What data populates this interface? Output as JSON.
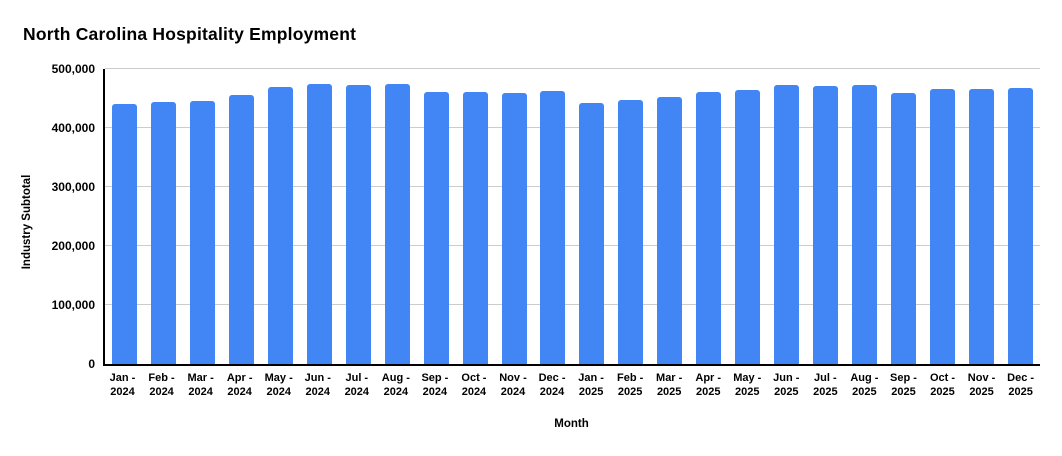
{
  "chart_data": {
    "type": "bar",
    "title": "North Carolina Hospitality Employment",
    "xlabel": "Month",
    "ylabel": "Industry Subtotal",
    "categories": [
      "Jan - 2024",
      "Feb - 2024",
      "Mar - 2024",
      "Apr - 2024",
      "May - 2024",
      "Jun - 2024",
      "Jul - 2024",
      "Aug - 2024",
      "Sep - 2024",
      "Oct - 2024",
      "Nov - 2024",
      "Dec - 2024",
      "Jan - 2025",
      "Feb - 2025",
      "Mar - 2025",
      "Apr - 2025",
      "May - 2025",
      "Jun - 2025",
      "Jul - 2025",
      "Aug - 2025",
      "Sep - 2025",
      "Oct - 2025",
      "Nov - 2025",
      "Dec - 2025"
    ],
    "values": [
      441000,
      444000,
      446000,
      456000,
      470000,
      475000,
      473000,
      475000,
      461000,
      461000,
      459000,
      463000,
      442000,
      448000,
      452000,
      461000,
      464000,
      473000,
      472000,
      473000,
      460000,
      466000,
      466000,
      468000
    ],
    "ylim": [
      0,
      500000
    ],
    "y_ticks": [
      0,
      100000,
      200000,
      300000,
      400000,
      500000
    ],
    "y_tick_labels": [
      "0",
      "100,000",
      "200,000",
      "300,000",
      "400,000",
      "500,000"
    ],
    "grid": "horizontal",
    "legend": "none",
    "bar_color": "#4285F4",
    "grid_color": "#cccccc",
    "axis_color": "#000000",
    "background_color": "#ffffff"
  }
}
